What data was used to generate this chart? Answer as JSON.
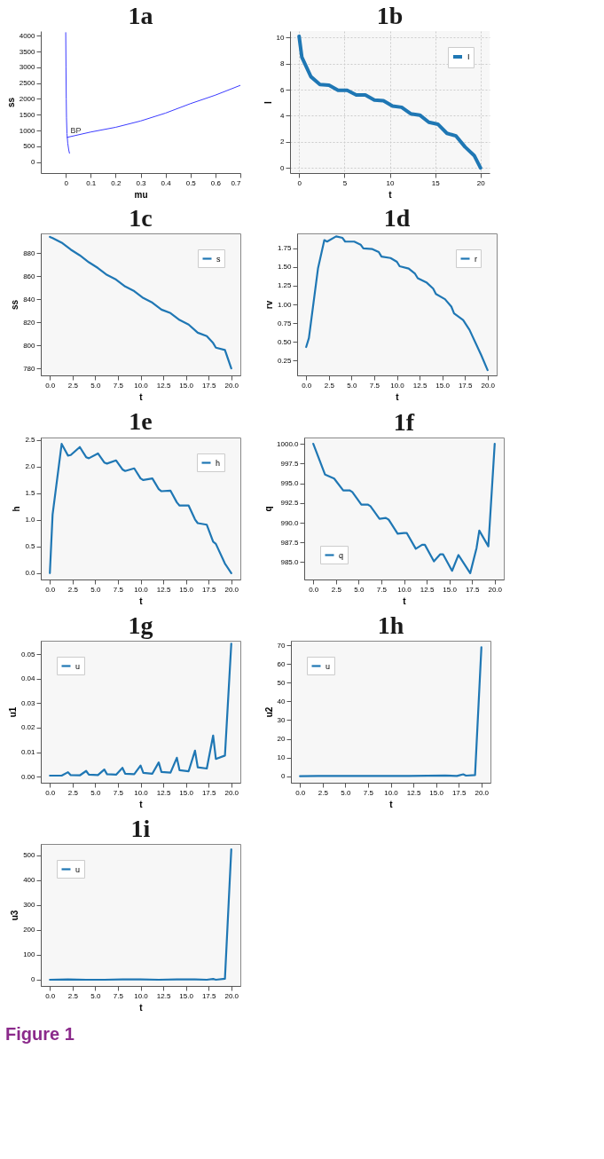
{
  "chart_data": [
    {
      "type": "line",
      "title": "1a",
      "xlabel": "mu",
      "ylabel": "ss",
      "xlim": [
        -0.1,
        0.7
      ],
      "ylim": [
        -350,
        4150
      ],
      "xticks": [
        0,
        0.1,
        0.2,
        0.3,
        0.4,
        0.5,
        0.6,
        0.7
      ],
      "yticks": [
        0,
        500,
        1000,
        1500,
        2000,
        2500,
        3000,
        3500,
        4000
      ],
      "grid": false,
      "legend": false,
      "series": [
        {
          "color": "#3b3bff",
          "x": [
            0.0,
            0.001,
            0.002,
            0.003,
            0.005,
            0.008,
            0.012,
            0.015
          ],
          "values": [
            4100,
            3000,
            2000,
            1400,
            900,
            600,
            380,
            280
          ]
        },
        {
          "color": "#3b3bff",
          "x": [
            0.005,
            0.1,
            0.2,
            0.3,
            0.4,
            0.5,
            0.6,
            0.7
          ],
          "values": [
            780,
            950,
            1100,
            1300,
            1550,
            1850,
            2120,
            2430
          ]
        }
      ],
      "annotations": [
        {
          "text": "BP",
          "x": 0.005,
          "y": 780
        }
      ]
    },
    {
      "type": "line",
      "title": "1b",
      "xlabel": "t",
      "ylabel": "I",
      "xlim": [
        -1,
        21
      ],
      "ylim": [
        -0.4,
        10.5
      ],
      "xticks": [
        0,
        5,
        10,
        15,
        20
      ],
      "yticks": [
        0,
        2,
        4,
        6,
        8,
        10
      ],
      "grid": true,
      "legend": "top right",
      "series": [
        {
          "name": "I",
          "color": "#1f77b4",
          "x": [
            0,
            0.3,
            1.3,
            2.3,
            3.3,
            4.3,
            5.3,
            6.3,
            7.3,
            8.3,
            9.3,
            10.3,
            11.3,
            12.3,
            13.3,
            14.3,
            15.3,
            16.3,
            17.3,
            18.3,
            19.3,
            20
          ],
          "values": [
            10.1,
            8.5,
            7.0,
            6.4,
            6.35,
            5.95,
            5.95,
            5.6,
            5.6,
            5.2,
            5.15,
            4.75,
            4.65,
            4.15,
            4.05,
            3.5,
            3.35,
            2.65,
            2.45,
            1.6,
            0.95,
            0.0
          ]
        }
      ]
    },
    {
      "type": "line",
      "title": "1c",
      "xlabel": "t",
      "ylabel": "ss",
      "xlim": [
        -1,
        21
      ],
      "ylim": [
        774,
        897
      ],
      "xticks": [
        {
          "value": 0,
          "label": "0.0"
        },
        2.5,
        {
          "value": 5,
          "label": "5.0"
        },
        7.5,
        {
          "value": 10,
          "label": "10.0"
        },
        12.5,
        {
          "value": 15,
          "label": "15.0"
        },
        17.5,
        {
          "value": 20,
          "label": "20.0"
        }
      ],
      "yticks": [
        780,
        800,
        820,
        840,
        860,
        880
      ],
      "grid": false,
      "legend": "top right",
      "series": [
        {
          "name": "s",
          "color": "#1f77b4",
          "x": [
            0,
            0.3,
            1.3,
            2.3,
            3.3,
            4.3,
            5.3,
            6.3,
            7.3,
            8.3,
            9.3,
            10.3,
            11.3,
            12.3,
            13.3,
            14.3,
            15.3,
            16.3,
            17.3,
            18,
            18.3,
            19.3,
            20
          ],
          "values": [
            894,
            893,
            889,
            883,
            878,
            872,
            867,
            861,
            857,
            851,
            847,
            841,
            837,
            831,
            828,
            822,
            818,
            811,
            808,
            802,
            798,
            796,
            780
          ]
        }
      ]
    },
    {
      "type": "line",
      "title": "1d",
      "xlabel": "t",
      "ylabel": "rv",
      "xlim": [
        -1,
        21
      ],
      "ylim": [
        0.05,
        1.95
      ],
      "xticks": [
        {
          "value": 0,
          "label": "0.0"
        },
        2.5,
        {
          "value": 5,
          "label": "5.0"
        },
        7.5,
        {
          "value": 10,
          "label": "10.0"
        },
        12.5,
        {
          "value": 15,
          "label": "15.0"
        },
        17.5,
        {
          "value": 20,
          "label": "20.0"
        }
      ],
      "yticks": [
        0.25,
        {
          "value": 0.5,
          "label": "0.50"
        },
        0.75,
        {
          "value": 1,
          "label": "1.00"
        },
        1.25,
        {
          "value": 1.5,
          "label": "1.50"
        },
        1.75
      ],
      "grid": false,
      "legend": "top right",
      "series": [
        {
          "name": "r",
          "color": "#1f77b4",
          "x": [
            0,
            0.3,
            1.3,
            2,
            2.3,
            3.3,
            4,
            4.3,
            5.3,
            6,
            6.3,
            7.3,
            8,
            8.3,
            9.3,
            10,
            10.3,
            11.3,
            12,
            12.3,
            13.3,
            14,
            14.3,
            15.3,
            16,
            16.3,
            17.3,
            18,
            19.3,
            20
          ],
          "values": [
            0.43,
            0.55,
            1.48,
            1.86,
            1.84,
            1.91,
            1.89,
            1.84,
            1.84,
            1.8,
            1.75,
            1.74,
            1.7,
            1.64,
            1.62,
            1.57,
            1.51,
            1.48,
            1.41,
            1.35,
            1.29,
            1.21,
            1.14,
            1.07,
            0.97,
            0.88,
            0.79,
            0.66,
            0.32,
            0.12
          ]
        }
      ]
    },
    {
      "type": "line",
      "title": "1e",
      "xlabel": "t",
      "ylabel": "h",
      "xlim": [
        -1,
        21
      ],
      "ylim": [
        -0.12,
        2.55
      ],
      "xticks": [
        {
          "value": 0,
          "label": "0.0"
        },
        2.5,
        {
          "value": 5,
          "label": "5.0"
        },
        7.5,
        {
          "value": 10,
          "label": "10.0"
        },
        12.5,
        {
          "value": 15,
          "label": "15.0"
        },
        17.5,
        {
          "value": 20,
          "label": "20.0"
        }
      ],
      "yticks": [
        {
          "value": 0,
          "label": "0.0"
        },
        0.5,
        {
          "value": 1,
          "label": "1.0"
        },
        1.5,
        {
          "value": 2,
          "label": "2.0"
        },
        2.5
      ],
      "grid": false,
      "legend": "top right",
      "series": [
        {
          "name": "h",
          "color": "#1f77b4",
          "x": [
            0,
            0.3,
            1.3,
            2,
            2.3,
            3.3,
            4,
            4.3,
            5.3,
            6,
            6.3,
            7.3,
            8,
            8.3,
            9.3,
            10,
            10.3,
            11.3,
            12,
            12.3,
            13.3,
            14,
            14.3,
            15.3,
            16,
            16.3,
            17.3,
            18,
            18.3,
            19.3,
            20
          ],
          "values": [
            0,
            1.1,
            2.43,
            2.21,
            2.22,
            2.37,
            2.18,
            2.16,
            2.25,
            2.08,
            2.06,
            2.12,
            1.95,
            1.92,
            1.97,
            1.78,
            1.75,
            1.78,
            1.58,
            1.54,
            1.55,
            1.33,
            1.27,
            1.27,
            1.01,
            0.94,
            0.91,
            0.59,
            0.55,
            0.18,
            0
          ]
        }
      ]
    },
    {
      "type": "line",
      "title": "1f",
      "xlabel": "t",
      "ylabel": "q",
      "xlim": [
        -1,
        21
      ],
      "ylim": [
        982.8,
        1000.8
      ],
      "xticks": [
        {
          "value": 0,
          "label": "0.0"
        },
        2.5,
        {
          "value": 5,
          "label": "5.0"
        },
        7.5,
        {
          "value": 10,
          "label": "10.0"
        },
        12.5,
        {
          "value": 15,
          "label": "15.0"
        },
        17.5,
        {
          "value": 20,
          "label": "20.0"
        }
      ],
      "yticks": [
        {
          "value": 985,
          "label": "985.0"
        },
        987.5,
        {
          "value": 990,
          "label": "990.0"
        },
        992.5,
        {
          "value": 995,
          "label": "995.0"
        },
        997.5,
        {
          "value": 1000,
          "label": "1000.0"
        }
      ],
      "grid": false,
      "legend": "bottom left",
      "series": [
        {
          "name": "q",
          "color": "#1f77b4",
          "x": [
            0,
            1.3,
            2.3,
            3.3,
            4,
            4.3,
            5.3,
            6,
            6.3,
            7.3,
            8,
            8.3,
            9.3,
            10,
            10.3,
            11.3,
            12,
            12.3,
            13.3,
            14,
            14.3,
            15.3,
            16,
            17.3,
            18,
            18.3,
            19.3,
            20
          ],
          "values": [
            1000,
            996.1,
            995.6,
            994.1,
            994.1,
            993.9,
            992.3,
            992.3,
            992.1,
            990.5,
            990.6,
            990.4,
            988.6,
            988.7,
            988.7,
            986.7,
            987.2,
            987.2,
            985.1,
            986.0,
            986.0,
            983.9,
            985.9,
            983.6,
            986.8,
            989.0,
            987.0,
            1000
          ]
        }
      ]
    },
    {
      "type": "line",
      "title": "1g",
      "xlabel": "t",
      "ylabel": "u1",
      "xlim": [
        -1,
        21
      ],
      "ylim": [
        -0.0025,
        0.0555
      ],
      "xticks": [
        {
          "value": 0,
          "label": "0.0"
        },
        2.5,
        {
          "value": 5,
          "label": "5.0"
        },
        7.5,
        {
          "value": 10,
          "label": "10.0"
        },
        12.5,
        {
          "value": 15,
          "label": "15.0"
        },
        17.5,
        {
          "value": 20,
          "label": "20.0"
        }
      ],
      "yticks": [
        {
          "value": 0,
          "label": "0.00"
        },
        0.01,
        0.02,
        0.03,
        0.04,
        0.05
      ],
      "grid": false,
      "legend": "top left",
      "series": [
        {
          "name": "u",
          "color": "#1f77b4",
          "x": [
            0,
            1.3,
            2,
            2.3,
            3.3,
            4,
            4.3,
            5.3,
            6,
            6.3,
            7.3,
            8,
            8.3,
            9.3,
            10,
            10.3,
            11.3,
            12,
            12.3,
            13.3,
            14,
            14.3,
            15.3,
            16,
            16.3,
            17.3,
            18,
            18.3,
            19.3,
            20
          ],
          "values": [
            0.0004,
            0.0004,
            0.0018,
            0.0006,
            0.0005,
            0.0023,
            0.0008,
            0.0006,
            0.0029,
            0.001,
            0.0008,
            0.0036,
            0.0012,
            0.001,
            0.0045,
            0.0015,
            0.0012,
            0.0058,
            0.0019,
            0.0016,
            0.0077,
            0.0026,
            0.0022,
            0.0106,
            0.0038,
            0.0033,
            0.0168,
            0.0072,
            0.0086,
            0.0543
          ]
        }
      ]
    },
    {
      "type": "line",
      "title": "1h",
      "xlabel": "t",
      "ylabel": "u2",
      "xlim": [
        -1,
        21
      ],
      "ylim": [
        -3.5,
        72.5
      ],
      "xticks": [
        {
          "value": 0,
          "label": "0.0"
        },
        2.5,
        {
          "value": 5,
          "label": "5.0"
        },
        7.5,
        {
          "value": 10,
          "label": "10.0"
        },
        12.5,
        {
          "value": 15,
          "label": "15.0"
        },
        17.5,
        {
          "value": 20,
          "label": "20.0"
        }
      ],
      "yticks": [
        0,
        10,
        20,
        30,
        40,
        50,
        60,
        70
      ],
      "grid": false,
      "legend": "top left",
      "series": [
        {
          "name": "u",
          "color": "#1f77b4",
          "x": [
            0,
            2,
            4,
            6,
            8,
            10,
            12,
            14,
            16,
            17.3,
            18,
            18.3,
            19.3,
            20
          ],
          "values": [
            0,
            0.1,
            0.1,
            0.1,
            0.1,
            0.1,
            0.1,
            0.2,
            0.4,
            0.1,
            1.0,
            0.3,
            0.6,
            69
          ]
        }
      ]
    },
    {
      "type": "line",
      "title": "1i",
      "xlabel": "t",
      "ylabel": "u3",
      "xlim": [
        -1,
        21
      ],
      "ylim": [
        -25,
        545
      ],
      "xticks": [
        {
          "value": 0,
          "label": "0.0"
        },
        2.5,
        {
          "value": 5,
          "label": "5.0"
        },
        7.5,
        {
          "value": 10,
          "label": "10.0"
        },
        12.5,
        {
          "value": 15,
          "label": "15.0"
        },
        17.5,
        {
          "value": 20,
          "label": "20.0"
        }
      ],
      "yticks": [
        0,
        100,
        200,
        300,
        400,
        500
      ],
      "grid": false,
      "legend": "top left",
      "series": [
        {
          "name": "u",
          "color": "#1f77b4",
          "x": [
            0,
            2,
            4,
            6,
            8,
            10,
            12,
            14,
            16,
            17.3,
            18,
            18.3,
            19.3,
            20
          ],
          "values": [
            0,
            1,
            0,
            0,
            1,
            1,
            0,
            1,
            1,
            0,
            3,
            0,
            4,
            523
          ]
        }
      ],
      "annotations": [
        "Figure 1"
      ]
    }
  ]
}
